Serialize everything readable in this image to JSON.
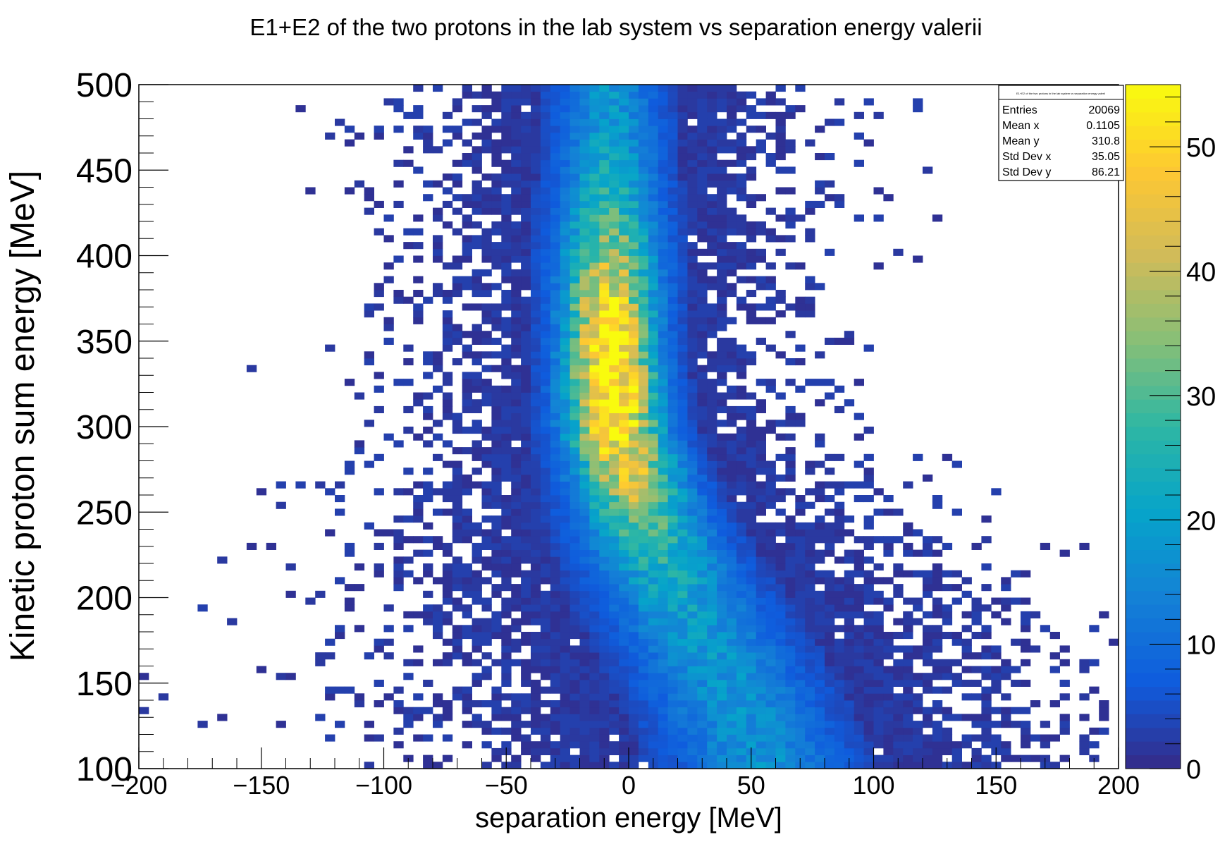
{
  "chart_data": {
    "type": "heatmap",
    "title": "E1+E2 of the two protons in the lab system vs separation energy valerii",
    "xlabel": "separation energy [MeV]",
    "ylabel": "Kinetic proton sum energy [MeV]",
    "xlim": [
      -200,
      200
    ],
    "ylim": [
      100,
      500
    ],
    "x_ticks": [
      "−200",
      "−150",
      "−100",
      "−50",
      "0",
      "50",
      "100",
      "150",
      "200"
    ],
    "y_ticks": [
      "100",
      "150",
      "200",
      "250",
      "300",
      "350",
      "400",
      "450",
      "500"
    ],
    "bins": {
      "x_width": 4,
      "y_width": 4
    },
    "colorbar": {
      "min": 0,
      "max": 55,
      "ticks": [
        "0",
        "10",
        "20",
        "30",
        "40",
        "50"
      ],
      "palette": [
        "#352a87",
        "#0f5cdd",
        "#1481d6",
        "#06a4ca",
        "#2eb7a4",
        "#87bf77",
        "#d1bb59",
        "#fec832",
        "#f9fb0e"
      ]
    },
    "stats_box": {
      "title": "E1+E2 of the two protons in the lab system vs separation energy valerii",
      "rows": [
        {
          "label": "Entries",
          "value": "20069"
        },
        {
          "label": "Mean x",
          "value": "0.1105"
        },
        {
          "label": "Mean y",
          "value": "310.8"
        },
        {
          "label": "Std Dev x",
          "value": "35.05"
        },
        {
          "label": "Std Dev y",
          "value": "86.21"
        }
      ]
    },
    "distribution": {
      "entries": 20069,
      "mean_x": 0.1105,
      "mean_y": 310.8,
      "std_x": 35.05,
      "std_y": 86.21,
      "ridge": [
        {
          "y": 100,
          "x_center": 55,
          "x_sigma": 22
        },
        {
          "y": 150,
          "x_center": 40,
          "x_sigma": 22
        },
        {
          "y": 200,
          "x_center": 20,
          "x_sigma": 20
        },
        {
          "y": 250,
          "x_center": 4,
          "x_sigma": 16
        },
        {
          "y": 300,
          "x_center": -6,
          "x_sigma": 13
        },
        {
          "y": 350,
          "x_center": -8,
          "x_sigma": 12
        },
        {
          "y": 400,
          "x_center": -8,
          "x_sigma": 13
        },
        {
          "y": 450,
          "x_center": -8,
          "x_sigma": 13
        },
        {
          "y": 500,
          "x_center": -8,
          "x_sigma": 13
        }
      ],
      "max_count": 55
    }
  }
}
